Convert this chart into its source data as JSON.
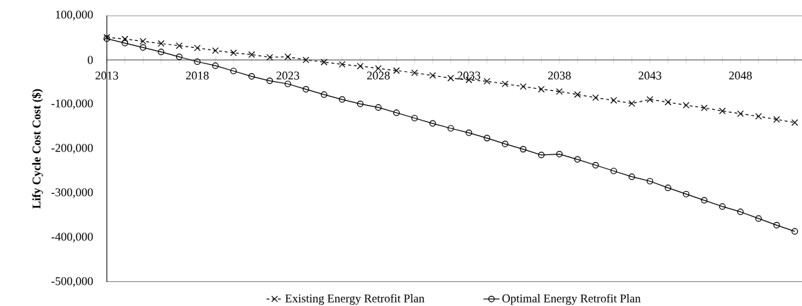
{
  "chart_data": {
    "type": "line",
    "ylabel": "Lify Cycle Cost Cost ($)",
    "legend": "bottom",
    "x": [
      2013,
      2014,
      2015,
      2016,
      2017,
      2018,
      2019,
      2020,
      2021,
      2022,
      2023,
      2024,
      2025,
      2026,
      2027,
      2028,
      2029,
      2030,
      2031,
      2032,
      2033,
      2034,
      2035,
      2036,
      2037,
      2038,
      2039,
      2040,
      2041,
      2042,
      2043,
      2044,
      2045,
      2046,
      2047,
      2048,
      2049,
      2050,
      2051
    ],
    "series": [
      {
        "name": "Existing Energy Retrofit Plan",
        "color": "#000000",
        "marker": "cross",
        "line_style": "dashed",
        "values": [
          51000,
          47000,
          42000,
          37000,
          32000,
          27000,
          21000,
          16000,
          12000,
          6000,
          7000,
          0,
          -5000,
          -10000,
          -14000,
          -19000,
          -24000,
          -29000,
          -35000,
          -41000,
          -45000,
          -48000,
          -54000,
          -60000,
          -66000,
          -71000,
          -78000,
          -85000,
          -91000,
          -98000,
          -89000,
          -95000,
          -102000,
          -108000,
          -115000,
          -121000,
          -127000,
          -134000,
          -141000
        ]
      },
      {
        "name": "Optimal Energy Retrofit Plan",
        "color": "#000000",
        "marker": "circle",
        "line_style": "solid",
        "values": [
          48000,
          38000,
          28000,
          18000,
          7000,
          -4000,
          -13000,
          -25000,
          -37000,
          -47000,
          -54000,
          -66000,
          -78000,
          -89000,
          -99000,
          -107000,
          -119000,
          -131000,
          -143000,
          -154000,
          -164000,
          -176000,
          -189000,
          -201000,
          -214000,
          -212000,
          -224000,
          -237000,
          -250000,
          -263000,
          -273000,
          -288000,
          -302000,
          -316000,
          -330000,
          -342000,
          -357000,
          -372000,
          -386000
        ]
      }
    ],
    "xlim": [
      2013,
      2051.4
    ],
    "ylim": [
      -500000,
      100000
    ],
    "xticks": [
      2013,
      {
        "value": 2014,
        "label": null
      },
      {
        "value": 2015,
        "label": null
      },
      {
        "value": 2016,
        "label": null
      },
      {
        "value": 2017,
        "label": null
      },
      2018,
      {
        "value": 2019,
        "label": null
      },
      {
        "value": 2020,
        "label": null
      },
      {
        "value": 2021,
        "label": null
      },
      {
        "value": 2022,
        "label": null
      },
      2023,
      {
        "value": 2024,
        "label": null
      },
      {
        "value": 2025,
        "label": null
      },
      {
        "value": 2026,
        "label": null
      },
      {
        "value": 2027,
        "label": null
      },
      2028,
      {
        "value": 2029,
        "label": null
      },
      {
        "value": 2030,
        "label": null
      },
      {
        "value": 2031,
        "label": null
      },
      {
        "value": 2032,
        "label": null
      },
      2033,
      {
        "value": 2034,
        "label": null
      },
      {
        "value": 2035,
        "label": null
      },
      {
        "value": 2036,
        "label": null
      },
      {
        "value": 2037,
        "label": null
      },
      2038,
      {
        "value": 2039,
        "label": null
      },
      {
        "value": 2040,
        "label": null
      },
      {
        "value": 2041,
        "label": null
      },
      {
        "value": 2042,
        "label": null
      },
      2043,
      {
        "value": 2044,
        "label": null
      },
      {
        "value": 2045,
        "label": null
      },
      {
        "value": 2046,
        "label": null
      },
      {
        "value": 2047,
        "label": null
      },
      2048,
      {
        "value": 2049,
        "label": null
      },
      {
        "value": 2050,
        "label": null
      },
      {
        "value": 2051,
        "label": null
      }
    ],
    "yticks": [
      {
        "value": 100000,
        "label": "100,000"
      },
      {
        "value": 0,
        "label": "0"
      },
      {
        "value": -100000,
        "label": "-100,000"
      },
      {
        "value": -200000,
        "label": "-200,000"
      },
      {
        "value": -300000,
        "label": "-300,000"
      },
      {
        "value": -400000,
        "label": "-400,000"
      },
      {
        "value": -500000,
        "label": "-500,000"
      }
    ]
  }
}
